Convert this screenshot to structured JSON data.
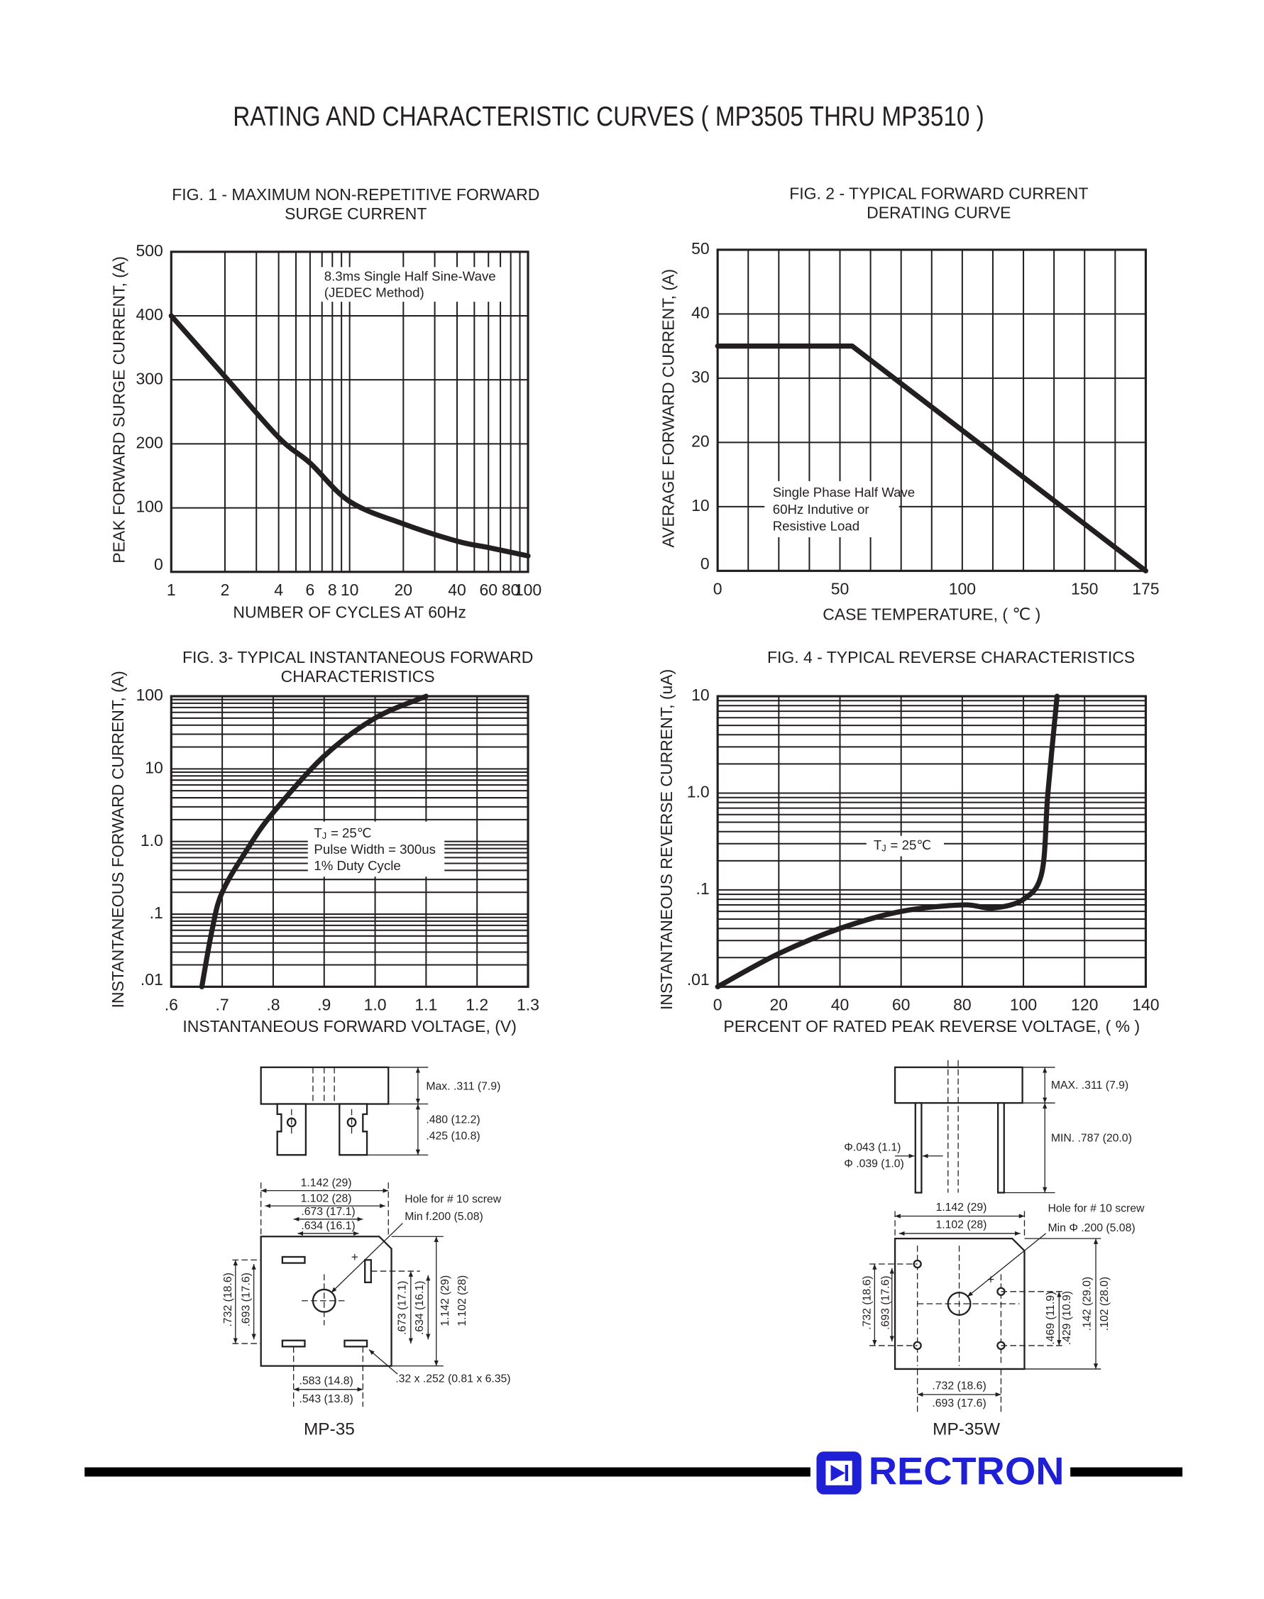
{
  "title": "RATING AND CHARACTERISTIC CURVES ( MP3505 THRU MP3510 )",
  "chart_data": [
    {
      "type": "line",
      "title": [
        "FIG. 1 - MAXIMUM NON-REPETITIVE FORWARD",
        "SURGE CURRENT"
      ],
      "x_label": "NUMBER OF CYCLES AT 60Hz",
      "y_label": "PEAK FORWARD SURGE CURRENT, (A)",
      "xscale": "log",
      "xlim": [
        1,
        100
      ],
      "ylim": [
        0,
        500
      ],
      "xticks": [
        1,
        2,
        4,
        6,
        8,
        10,
        20,
        40,
        60,
        80,
        100
      ],
      "xminor": [
        3,
        5,
        7,
        9,
        30,
        50,
        70,
        90
      ],
      "yticks": [
        0,
        100,
        200,
        300,
        400,
        500
      ],
      "grid": true,
      "color": "#231f20",
      "x": [
        1,
        2,
        4,
        6,
        10,
        20,
        40,
        60,
        100
      ],
      "values": [
        400,
        305,
        210,
        170,
        110,
        75,
        48,
        38,
        25
      ],
      "annotation": [
        "8.3ms Single Half Sine-Wave",
        "(JEDEC Method)"
      ]
    },
    {
      "type": "line",
      "title": [
        "FIG. 2 - TYPICAL FORWARD CURRENT",
        "DERATING CURVE"
      ],
      "x_label": "CASE TEMPERATURE, ( ℃ )",
      "y_label": "AVERAGE FORWARD  CURRENT, (A)",
      "xlim": [
        0,
        175
      ],
      "ylim": [
        0,
        50
      ],
      "xticks": [
        0,
        50,
        100,
        150,
        175
      ],
      "xminor": [
        12.5,
        25,
        37.5,
        62.5,
        75,
        87.5,
        112.5,
        125,
        137.5,
        162.5
      ],
      "yticks": [
        0,
        10,
        20,
        30,
        40,
        50
      ],
      "grid": true,
      "color": "#231f20",
      "x": [
        0,
        55,
        175
      ],
      "values": [
        35,
        35,
        0
      ],
      "annotation": [
        "Single Phase Half Wave",
        "60Hz Indutive or",
        "Resistive Load"
      ]
    },
    {
      "type": "line",
      "title": [
        "FIG. 3- TYPICAL INSTANTANEOUS FORWARD",
        "CHARACTERISTICS"
      ],
      "x_label": "INSTANTANEOUS FORWARD VOLTAGE, (V)",
      "y_label": "INSTANTANEOUS FORWARD CURRENT, (A)",
      "yscale": "log",
      "xlim": [
        0.6,
        1.3
      ],
      "ylim": [
        0.01,
        100
      ],
      "xticks": [
        {
          "value": 0.6,
          "label": ".6"
        },
        {
          "value": 0.7,
          "label": ".7"
        },
        {
          "value": 0.8,
          "label": ".8"
        },
        {
          "value": 0.9,
          "label": ".9"
        },
        {
          "value": 1,
          "label": "1.0"
        },
        1.1,
        1.2,
        1.3
      ],
      "yticks": [
        {
          "value": 0.01,
          "label": ".01"
        },
        {
          "value": 0.1,
          "label": ".1"
        },
        {
          "value": 1,
          "label": "1.0"
        },
        10,
        100
      ],
      "yminor": [
        0.02,
        0.03,
        0.04,
        0.05,
        0.06,
        0.07,
        0.08,
        0.09,
        0.2,
        0.3,
        0.4,
        0.5,
        0.6,
        0.7,
        0.8,
        0.9,
        2,
        3,
        4,
        5,
        6,
        7,
        8,
        9,
        20,
        30,
        40,
        50,
        60,
        70,
        80,
        90
      ],
      "grid": true,
      "color": "#231f20",
      "x": [
        0.66,
        0.68,
        0.7,
        0.75,
        0.8,
        0.9,
        1,
        1.1
      ],
      "values": [
        0.01,
        0.06,
        0.2,
        0.8,
        2.5,
        15,
        50,
        100
      ],
      "annotation": {
        "symbol": "T",
        "subscript": "J",
        "condition": "= 25℃",
        "lines": [
          "Pulse Width = 300us",
          "1% Duty Cycle"
        ]
      }
    },
    {
      "type": "line",
      "title": [
        "FIG. 4 - TYPICAL REVERSE CHARACTERISTICS"
      ],
      "x_label": "PERCENT OF RATED PEAK REVERSE VOLTAGE, ( % )",
      "y_label": "INSTANTANEOUS REVERSE CURRENT, (uA)",
      "yscale": "log",
      "xlim": [
        0,
        140
      ],
      "ylim": [
        0.01,
        10
      ],
      "xticks": [
        0,
        20,
        40,
        60,
        80,
        100,
        120,
        140
      ],
      "yticks": [
        {
          "value": 0.01,
          "label": ".01"
        },
        {
          "value": 0.1,
          "label": ".1"
        },
        {
          "value": 1,
          "label": "1.0"
        },
        10
      ],
      "yminor": [
        0.02,
        0.03,
        0.04,
        0.05,
        0.06,
        0.07,
        0.08,
        0.09,
        0.2,
        0.3,
        0.4,
        0.5,
        0.6,
        0.7,
        0.8,
        0.9,
        2,
        3,
        4,
        5,
        6,
        7,
        8,
        9
      ],
      "grid": true,
      "color": "#231f20",
      "x": [
        0,
        20,
        40,
        60,
        80,
        90,
        100,
        106,
        108,
        111
      ],
      "values": [
        0.01,
        0.022,
        0.04,
        0.06,
        0.07,
        0.065,
        0.08,
        0.15,
        1,
        10
      ],
      "annotation": {
        "symbol": "T",
        "subscript": "J",
        "condition": "= 25℃"
      }
    }
  ],
  "packages": [
    {
      "name": "MP-35",
      "plus": "+",
      "labels": [
        "Max. .311 (7.9)",
        ".480 (12.2)",
        ".425 (10.8)",
        "1.142 (29)",
        "1.102 (28)",
        ".673 (17.1)",
        ".634 (16.1)",
        "Hole for # 10 screw",
        "Min f.200 (5.08)",
        ".732 (18.6)",
        ".693 (17.6)",
        ".673 (17.1)",
        ".634 (16.1)",
        "1.142 (29)",
        "1.102 (28)",
        ".583 (14.8)",
        ".543 (13.8)",
        ".32 x .252 (0.81 x 6.35)"
      ]
    },
    {
      "name": "MP-35W",
      "plus": "+",
      "labels": [
        "MAX. .311 (7.9)",
        "MIN. .787 (20.0)",
        "Φ.043 (1.1)",
        "Φ .039 (1.0)",
        "1.142 (29)",
        "1.102 (28)",
        "Hole for # 10 screw",
        "Min Φ .200 (5.08)",
        ".732 (18.6)",
        ".693 (17.6)",
        ".469 (11.9)",
        ".429 (10.9)",
        ".142 (29.0)",
        ".102 (28.0)",
        ".732 (18.6)",
        ".693 (17.6)"
      ]
    }
  ],
  "logo": "RECTRON"
}
